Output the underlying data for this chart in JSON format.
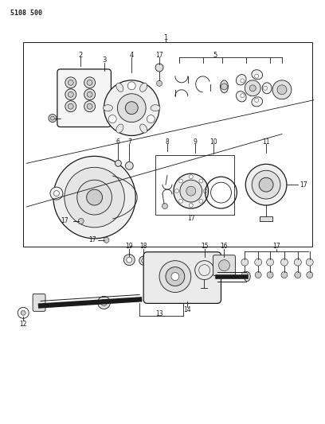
{
  "bg_color": "#ffffff",
  "line_color": "#1a1a1a",
  "header_text": "5108 500",
  "fig_width": 4.08,
  "fig_height": 5.33,
  "dpi": 100
}
